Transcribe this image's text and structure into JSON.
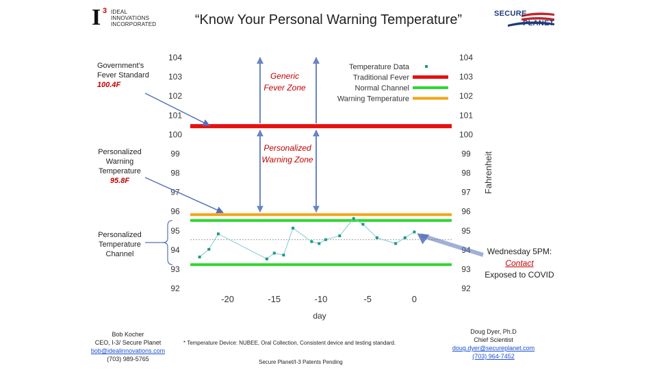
{
  "title": "“Know Your Personal Warning Temperature”",
  "logo_left": {
    "mark": "I",
    "sup": "3",
    "line1": "IDEAL",
    "line2": "INNOVATIONS",
    "line3": "INCORPORATED"
  },
  "logo_right": {
    "line1": "SECURE",
    "line2": "PLANET"
  },
  "left_labels": {
    "gov_title": "Government’s Fever Standard",
    "gov_value": "100.4F",
    "pwt_title": "Personalized Warning Temperature",
    "pwt_value": "95.8F",
    "channel_title": "Personalized Temperature Channel"
  },
  "zones": {
    "generic": "Generic Fever Zone",
    "personalized": "Personalized Warning Zone"
  },
  "event": {
    "line1": "Wednesday 5PM:",
    "line2": "Contact",
    "line3": "Exposed to COVID"
  },
  "footer_left": {
    "name": "Bob Kocher",
    "role": "CEO, I-3/ Secure Planet",
    "email": "bob@idealinnovations.com",
    "phone": "(703) 989-5765"
  },
  "footer_center": {
    "note": "* Temperature Device: NUBEE, Oral Collection, Consistent device and testing standard.",
    "patents": "Secure Planet/I-3 Patents Pending"
  },
  "footer_right": {
    "name": "Doug Dyer, Ph.D",
    "role": "Chief Scientist",
    "email": "doug.dyer@secureplanet.com",
    "phone": "(703) 964-7452"
  },
  "colors": {
    "fever": "#e8100e",
    "channel": "#2cd82c",
    "warning": "#f5a413",
    "data": "#1a9a86",
    "annotation_arrow": "#5570b8",
    "zone_arrow": "#6a84c4"
  },
  "chart_data": {
    "type": "line",
    "title": "",
    "xlabel": "day",
    "ylabel": "Fahrenheit",
    "xlim": [
      -24,
      4
    ],
    "ylim": [
      92,
      104
    ],
    "x_ticks": [
      -20,
      -15,
      -10,
      -5,
      0
    ],
    "y_ticks": [
      92,
      93,
      94,
      95,
      96,
      97,
      98,
      99,
      100,
      101,
      102,
      103,
      104
    ],
    "legend": {
      "placement": "top-right",
      "entries": [
        "Temperature Data",
        "Traditional Fever",
        "Normal Channel",
        "Warning Temperature"
      ]
    },
    "series": [
      {
        "name": "Temperature Data",
        "x": [
          -23,
          -22,
          -21,
          -15.8,
          -15,
          -14,
          -13,
          -11,
          -10.2,
          -9.5,
          -8,
          -6.5,
          -5.5,
          -4,
          -2,
          -1,
          0
        ],
        "y": [
          93.6,
          94.0,
          94.8,
          93.5,
          93.8,
          93.7,
          95.1,
          94.4,
          94.3,
          94.5,
          94.7,
          95.6,
          95.3,
          94.6,
          94.3,
          94.6,
          94.9
        ]
      }
    ],
    "reference_lines": [
      {
        "name": "Traditional Fever",
        "y": 100.4
      },
      {
        "name": "Warning Temperature",
        "y": 95.8
      },
      {
        "name": "Normal Channel",
        "y": 95.5
      },
      {
        "name": "Normal Channel",
        "y": 93.2
      }
    ],
    "mean_line": {
      "y": 94.5,
      "style": "dotted"
    }
  }
}
